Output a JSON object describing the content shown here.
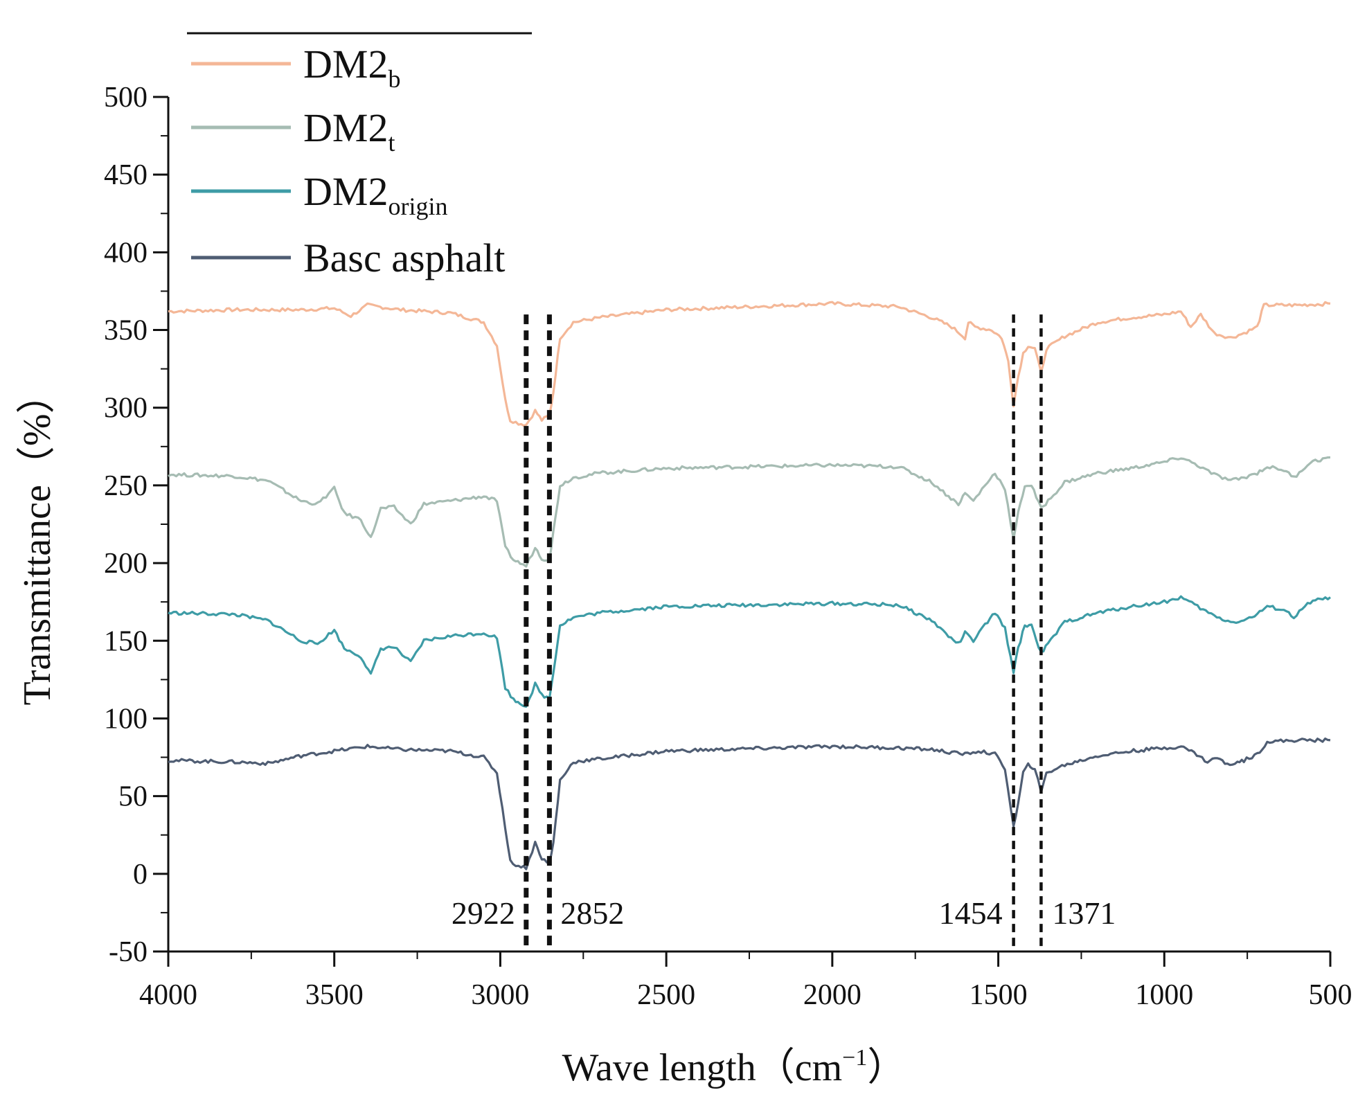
{
  "chart_data": {
    "type": "line",
    "title": "",
    "xlabel": "Wave length（cm⁻¹）",
    "xlabel_main": "Wave length（cm",
    "xlabel_sup": "−1",
    "xlabel_close": "）",
    "ylabel": "Transmittance（%）",
    "xlim": [
      4000,
      500
    ],
    "ylim": [
      -50,
      500
    ],
    "x_ticks": [
      4000,
      3500,
      3000,
      2500,
      2000,
      1500,
      1000,
      500
    ],
    "y_ticks": [
      500,
      450,
      400,
      350,
      300,
      250,
      200,
      150,
      100,
      50,
      0,
      -50
    ],
    "grid": false,
    "legend_position": "top-left",
    "series": [
      {
        "name": "DM2b",
        "label_main": "DM2",
        "label_sub": "b",
        "color": "#F4B797",
        "points": [
          [
            4000,
            362
          ],
          [
            3800,
            363
          ],
          [
            3600,
            363
          ],
          [
            3500,
            364
          ],
          [
            3450,
            359
          ],
          [
            3400,
            366
          ],
          [
            3300,
            363
          ],
          [
            3150,
            361
          ],
          [
            3050,
            355
          ],
          [
            3010,
            340
          ],
          [
            2985,
            305
          ],
          [
            2970,
            292
          ],
          [
            2945,
            290
          ],
          [
            2922,
            289
          ],
          [
            2895,
            298
          ],
          [
            2875,
            292
          ],
          [
            2852,
            295
          ],
          [
            2840,
            310
          ],
          [
            2820,
            345
          ],
          [
            2780,
            355
          ],
          [
            2700,
            358
          ],
          [
            2500,
            363
          ],
          [
            2000,
            367
          ],
          [
            1800,
            365
          ],
          [
            1700,
            358
          ],
          [
            1640,
            352
          ],
          [
            1600,
            345
          ],
          [
            1590,
            355
          ],
          [
            1570,
            352
          ],
          [
            1520,
            350
          ],
          [
            1490,
            345
          ],
          [
            1470,
            330
          ],
          [
            1454,
            302
          ],
          [
            1440,
            320
          ],
          [
            1425,
            335
          ],
          [
            1410,
            340
          ],
          [
            1390,
            338
          ],
          [
            1371,
            322
          ],
          [
            1355,
            338
          ],
          [
            1300,
            346
          ],
          [
            1200,
            355
          ],
          [
            1100,
            358
          ],
          [
            1000,
            360
          ],
          [
            950,
            362
          ],
          [
            920,
            352
          ],
          [
            890,
            360
          ],
          [
            850,
            348
          ],
          [
            800,
            345
          ],
          [
            760,
            348
          ],
          [
            720,
            352
          ],
          [
            700,
            366
          ],
          [
            600,
            366
          ],
          [
            500,
            367
          ]
        ]
      },
      {
        "name": "DM2t",
        "label_main": "DM2",
        "label_sub": "t",
        "color": "#A6BCB3",
        "points": [
          [
            4000,
            257
          ],
          [
            3800,
            256
          ],
          [
            3700,
            253
          ],
          [
            3600,
            240
          ],
          [
            3550,
            238
          ],
          [
            3500,
            248
          ],
          [
            3470,
            232
          ],
          [
            3420,
            228
          ],
          [
            3390,
            216
          ],
          [
            3360,
            235
          ],
          [
            3320,
            236
          ],
          [
            3270,
            225
          ],
          [
            3230,
            238
          ],
          [
            3150,
            240
          ],
          [
            3050,
            243
          ],
          [
            3010,
            240
          ],
          [
            2985,
            210
          ],
          [
            2960,
            202
          ],
          [
            2940,
            200
          ],
          [
            2922,
            198
          ],
          [
            2895,
            210
          ],
          [
            2875,
            203
          ],
          [
            2852,
            202
          ],
          [
            2840,
            220
          ],
          [
            2820,
            250
          ],
          [
            2780,
            255
          ],
          [
            2700,
            258
          ],
          [
            2500,
            261
          ],
          [
            2000,
            263
          ],
          [
            1800,
            262
          ],
          [
            1700,
            252
          ],
          [
            1650,
            243
          ],
          [
            1620,
            238
          ],
          [
            1600,
            245
          ],
          [
            1575,
            240
          ],
          [
            1540,
            250
          ],
          [
            1510,
            258
          ],
          [
            1480,
            248
          ],
          [
            1454,
            215
          ],
          [
            1440,
            232
          ],
          [
            1420,
            250
          ],
          [
            1400,
            250
          ],
          [
            1371,
            235
          ],
          [
            1350,
            240
          ],
          [
            1300,
            252
          ],
          [
            1200,
            258
          ],
          [
            1100,
            261
          ],
          [
            1000,
            265
          ],
          [
            950,
            268
          ],
          [
            900,
            263
          ],
          [
            850,
            257
          ],
          [
            800,
            253
          ],
          [
            760,
            255
          ],
          [
            720,
            258
          ],
          [
            690,
            262
          ],
          [
            640,
            260
          ],
          [
            610,
            255
          ],
          [
            560,
            265
          ],
          [
            500,
            268
          ]
        ]
      },
      {
        "name": "DM2origin",
        "label_main": "DM2",
        "label_sub": "origin",
        "color": "#3E9CA6",
        "points": [
          [
            4000,
            168
          ],
          [
            3800,
            167
          ],
          [
            3700,
            163
          ],
          [
            3600,
            150
          ],
          [
            3550,
            148
          ],
          [
            3500,
            157
          ],
          [
            3470,
            145
          ],
          [
            3420,
            140
          ],
          [
            3390,
            128
          ],
          [
            3360,
            145
          ],
          [
            3320,
            146
          ],
          [
            3270,
            136
          ],
          [
            3230,
            150
          ],
          [
            3150,
            153
          ],
          [
            3050,
            155
          ],
          [
            3010,
            152
          ],
          [
            2985,
            120
          ],
          [
            2960,
            112
          ],
          [
            2940,
            110
          ],
          [
            2922,
            108
          ],
          [
            2895,
            122
          ],
          [
            2875,
            115
          ],
          [
            2852,
            113
          ],
          [
            2840,
            130
          ],
          [
            2820,
            160
          ],
          [
            2780,
            165
          ],
          [
            2700,
            168
          ],
          [
            2500,
            172
          ],
          [
            2000,
            174
          ],
          [
            1800,
            173
          ],
          [
            1700,
            163
          ],
          [
            1650,
            153
          ],
          [
            1620,
            148
          ],
          [
            1600,
            155
          ],
          [
            1575,
            150
          ],
          [
            1540,
            160
          ],
          [
            1510,
            168
          ],
          [
            1480,
            158
          ],
          [
            1454,
            130
          ],
          [
            1440,
            145
          ],
          [
            1420,
            160
          ],
          [
            1400,
            160
          ],
          [
            1371,
            142
          ],
          [
            1350,
            148
          ],
          [
            1300,
            162
          ],
          [
            1200,
            168
          ],
          [
            1100,
            172
          ],
          [
            1000,
            175
          ],
          [
            950,
            178
          ],
          [
            900,
            172
          ],
          [
            850,
            166
          ],
          [
            800,
            162
          ],
          [
            760,
            163
          ],
          [
            720,
            167
          ],
          [
            690,
            172
          ],
          [
            640,
            170
          ],
          [
            610,
            165
          ],
          [
            560,
            175
          ],
          [
            500,
            178
          ]
        ]
      },
      {
        "name": "Basc asphalt",
        "label_main": "Basc asphalt",
        "label_sub": "",
        "color": "#4F5D73",
        "points": [
          [
            4000,
            73
          ],
          [
            3800,
            72
          ],
          [
            3700,
            71
          ],
          [
            3600,
            76
          ],
          [
            3500,
            79
          ],
          [
            3400,
            82
          ],
          [
            3300,
            80
          ],
          [
            3150,
            79
          ],
          [
            3050,
            75
          ],
          [
            3010,
            65
          ],
          [
            2985,
            30
          ],
          [
            2970,
            8
          ],
          [
            2945,
            5
          ],
          [
            2922,
            4
          ],
          [
            2895,
            20
          ],
          [
            2875,
            10
          ],
          [
            2852,
            6
          ],
          [
            2840,
            20
          ],
          [
            2820,
            60
          ],
          [
            2780,
            72
          ],
          [
            2700,
            74
          ],
          [
            2500,
            79
          ],
          [
            2000,
            82
          ],
          [
            1800,
            81
          ],
          [
            1700,
            80
          ],
          [
            1640,
            78
          ],
          [
            1600,
            77
          ],
          [
            1560,
            79
          ],
          [
            1510,
            77
          ],
          [
            1480,
            68
          ],
          [
            1454,
            30
          ],
          [
            1440,
            45
          ],
          [
            1425,
            65
          ],
          [
            1410,
            70
          ],
          [
            1390,
            68
          ],
          [
            1371,
            52
          ],
          [
            1355,
            65
          ],
          [
            1300,
            70
          ],
          [
            1200,
            76
          ],
          [
            1100,
            79
          ],
          [
            1000,
            81
          ],
          [
            950,
            82
          ],
          [
            910,
            78
          ],
          [
            870,
            72
          ],
          [
            840,
            75
          ],
          [
            810,
            70
          ],
          [
            780,
            72
          ],
          [
            760,
            73
          ],
          [
            720,
            77
          ],
          [
            690,
            85
          ],
          [
            600,
            86
          ],
          [
            500,
            86
          ]
        ]
      }
    ],
    "annotations": [
      {
        "x": 2922,
        "label": "2922",
        "side": "left"
      },
      {
        "x": 2852,
        "label": "2852",
        "side": "right"
      },
      {
        "x": 1454,
        "label": "1454",
        "side": "left"
      },
      {
        "x": 1371,
        "label": "1371",
        "side": "right"
      }
    ]
  }
}
